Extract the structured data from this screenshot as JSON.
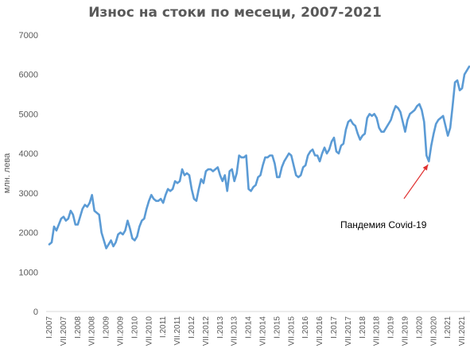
{
  "chart_data": {
    "type": "line",
    "title": "Износ на стоки по месеци, 2007-2021",
    "xlabel": "",
    "ylabel": "млн. лева",
    "ylim": [
      0,
      7000
    ],
    "y_ticks": [
      "0",
      "1000",
      "2000",
      "3000",
      "4000",
      "5000",
      "6000",
      "7000"
    ],
    "x_tick_labels": [
      "I.2007",
      "VII.2007",
      "I.2008",
      "VII.2008",
      "I.2009",
      "VII.2009",
      "I.2010",
      "VII.2010",
      "I.2011",
      "VII.2011",
      "I.2012",
      "VII.2012",
      "I.2013",
      "VII.2013",
      "I.2014",
      "VII.2014",
      "I.2015",
      "VII.2015",
      "I.2016",
      "VII.2016",
      "I.2017",
      "VII.2017",
      "I.2018",
      "VII.2018",
      "I.2019",
      "VII.2019",
      "I.2020",
      "VII.2020",
      "I.2021",
      "VII.2021"
    ],
    "grid": false,
    "legend": "none",
    "series_color": "#5B9BD5",
    "annotation": {
      "text": "Пандемия Covid-19",
      "target_month_index": 160,
      "target_value": 3800,
      "arrow_color": "#E03030"
    },
    "series": [
      {
        "values": [
          1700,
          1750,
          2150,
          2050,
          2200,
          2350,
          2400,
          2300,
          2350,
          2550,
          2450,
          2200,
          2200,
          2400,
          2600,
          2700,
          2650,
          2750,
          2950,
          2550,
          2500,
          2450,
          2000,
          1800,
          1600,
          1700,
          1800,
          1650,
          1750,
          1950,
          2000,
          1950,
          2050,
          2300,
          2100,
          1850,
          1800,
          1900,
          2150,
          2300,
          2350,
          2600,
          2800,
          2950,
          2850,
          2800,
          2800,
          2850,
          2750,
          2950,
          3100,
          3050,
          3100,
          3300,
          3250,
          3300,
          3600,
          3450,
          3500,
          3450,
          3100,
          2850,
          2800,
          3100,
          3350,
          3250,
          3550,
          3600,
          3600,
          3550,
          3600,
          3650,
          3450,
          3300,
          3450,
          3050,
          3550,
          3600,
          3300,
          3500,
          3950,
          3900,
          3900,
          3950,
          3100,
          3050,
          3150,
          3200,
          3400,
          3450,
          3700,
          3900,
          3900,
          3950,
          3950,
          3750,
          3400,
          3400,
          3650,
          3800,
          3900,
          4000,
          3950,
          3700,
          3450,
          3400,
          3450,
          3650,
          3700,
          3950,
          4050,
          4100,
          3950,
          3950,
          3800,
          4000,
          4150,
          4000,
          4100,
          4300,
          4400,
          4050,
          4000,
          4200,
          4250,
          4600,
          4800,
          4850,
          4750,
          4700,
          4500,
          4350,
          4450,
          4500,
          4900,
          5000,
          4950,
          5000,
          4900,
          4650,
          4550,
          4550,
          4650,
          4750,
          4850,
          5050,
          5200,
          5150,
          5050,
          4800,
          4550,
          4850,
          5000,
          5050,
          5100,
          5200,
          5250,
          5100,
          4800,
          3950,
          3800,
          4200,
          4500,
          4750,
          4850,
          4900,
          4950,
          4700,
          4450,
          4650,
          5200,
          5800,
          5850,
          5600,
          5650,
          6000,
          6100,
          6200
        ]
      }
    ]
  }
}
